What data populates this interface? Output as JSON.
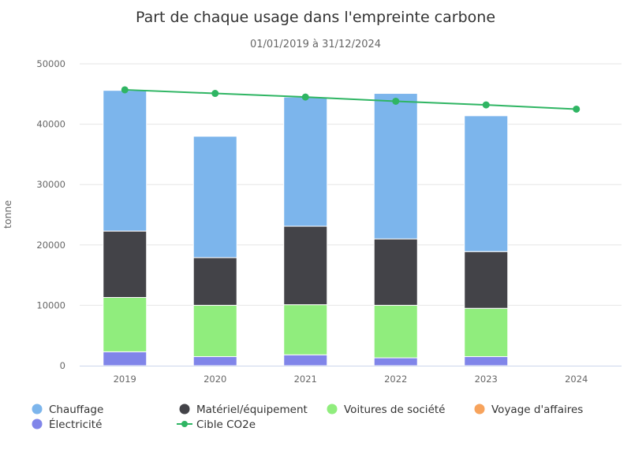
{
  "chart_data": {
    "type": "bar",
    "stacked": true,
    "title": "Part de chaque usage dans l'empreinte carbone",
    "subtitle": "01/01/2019 à 31/12/2024",
    "ylabel": "tonne",
    "ylim": [
      0,
      50000
    ],
    "yticks": [
      0,
      10000,
      20000,
      30000,
      40000,
      50000
    ],
    "categories": [
      "2019",
      "2020",
      "2021",
      "2022",
      "2023",
      "2024"
    ],
    "grid": true,
    "legend_position": "bottom",
    "series": [
      {
        "name": "Électricité",
        "color": "#8085e9",
        "values": [
          2300,
          1500,
          1800,
          1300,
          1500,
          0
        ]
      },
      {
        "name": "Voitures de société",
        "color": "#90ed7d",
        "values": [
          9000,
          8500,
          8300,
          8700,
          8000,
          0
        ]
      },
      {
        "name": "Matériel/équipement",
        "color": "#434348",
        "values": [
          11000,
          7900,
          13000,
          11000,
          9400,
          0
        ]
      },
      {
        "name": "Chauffage",
        "color": "#7cb5ec",
        "values": [
          23300,
          20100,
          21400,
          24100,
          22500,
          0
        ]
      },
      {
        "name": "Voyage d'affaires",
        "color": "#f7a35c",
        "values": [
          0,
          0,
          0,
          0,
          0,
          0
        ]
      }
    ],
    "target_line": {
      "name": "Cible CO2e",
      "color": "#2fb563",
      "values": [
        45700,
        45100,
        44500,
        43800,
        43200,
        42500
      ]
    },
    "legend_rows": [
      [
        "Chauffage",
        "Matériel/équipement",
        "Voitures de société",
        "Voyage d'affaires"
      ],
      [
        "Électricité",
        "Cible CO2e"
      ]
    ]
  }
}
